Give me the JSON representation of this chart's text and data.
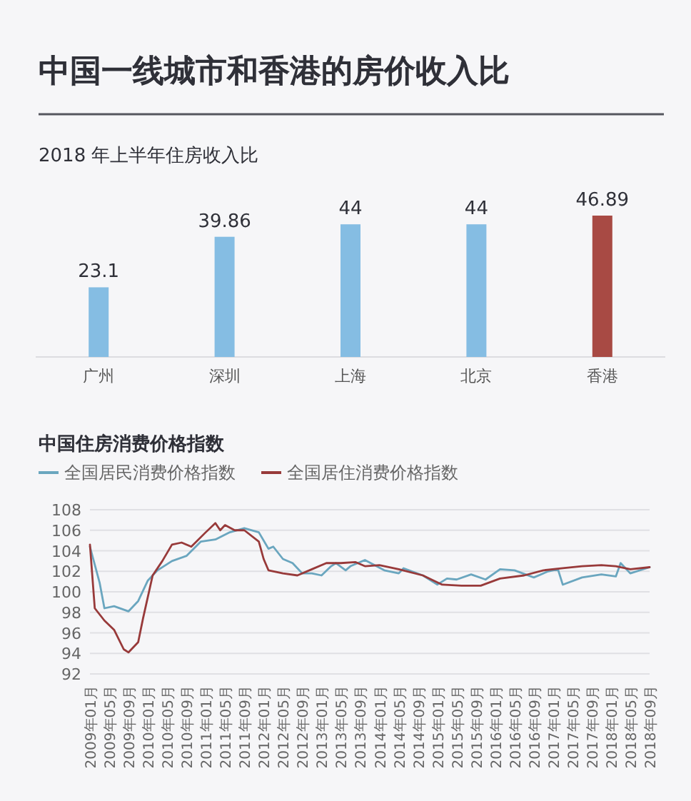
{
  "chart_data": [
    {
      "type": "bar",
      "title": "中国一线城市和香港的房价收入比",
      "subtitle": "2018 年上半年住房收入比",
      "categories": [
        "广州",
        "深圳",
        "上海",
        "北京",
        "香港"
      ],
      "values": [
        23.1,
        39.86,
        44,
        44,
        46.89
      ],
      "colors": [
        "#85bde3",
        "#85bde3",
        "#85bde3",
        "#85bde3",
        "#a84a44"
      ],
      "data_labels": true
    },
    {
      "type": "line",
      "title": "中国住房消费价格指数",
      "legend": "top left",
      "grid": "y",
      "ylim": [
        92,
        108
      ],
      "yticks": [
        92,
        94,
        96,
        98,
        100,
        102,
        104,
        106,
        108
      ],
      "xlim": [
        "2009-01",
        "2018-09"
      ],
      "xticks": [
        {
          "value": "2009-01",
          "label": "2009年01月"
        },
        {
          "value": "2009-05",
          "label": "2009年05月"
        },
        {
          "value": "2009-09",
          "label": "2009年09月"
        },
        {
          "value": "2010-01",
          "label": "2010年01月"
        },
        {
          "value": "2010-05",
          "label": "2010年05月"
        },
        {
          "value": "2010-09",
          "label": "2010年09月"
        },
        {
          "value": "2011-01",
          "label": "2011年01月"
        },
        {
          "value": "2011-05",
          "label": "2011年05月"
        },
        {
          "value": "2011-09",
          "label": "2011年09月"
        },
        {
          "value": "2012-01",
          "label": "2012年01月"
        },
        {
          "value": "2012-05",
          "label": "2012年05月"
        },
        {
          "value": "2012-09",
          "label": "2012年09月"
        },
        {
          "value": "2013-01",
          "label": "2013年01月"
        },
        {
          "value": "2013-05",
          "label": "2013年05月"
        },
        {
          "value": "2013-09",
          "label": "2013年09月"
        },
        {
          "value": "2014-01",
          "label": "2014年01月"
        },
        {
          "value": "2014-05",
          "label": "2014年05月"
        },
        {
          "value": "2014-09",
          "label": "2014年09月"
        },
        {
          "value": "2015-01",
          "label": "2015年01月"
        },
        {
          "value": "2015-05",
          "label": "2015年05月"
        },
        {
          "value": "2015-09",
          "label": "2015年09月"
        },
        {
          "value": "2016-01",
          "label": "2016年01月"
        },
        {
          "value": "2016-05",
          "label": "2016年05月"
        },
        {
          "value": "2016-09",
          "label": "2016年09月"
        },
        {
          "value": "2017-01",
          "label": "2017年01月"
        },
        {
          "value": "2017-05",
          "label": "2017年05月"
        },
        {
          "value": "2017-09",
          "label": "2017年09月"
        },
        {
          "value": "2018-01",
          "label": "2018年01月"
        },
        {
          "value": "2018-05",
          "label": "2018年05月"
        },
        {
          "value": "2018-09",
          "label": "2018年09月"
        }
      ],
      "series": [
        {
          "name": "全国居民消费价格指数",
          "color": "#6aa6bf",
          "x": [
            "2009-01",
            "2009-03",
            "2009-04",
            "2009-06",
            "2009-09",
            "2009-11",
            "2010-01",
            "2010-03",
            "2010-06",
            "2010-09",
            "2010-12",
            "2011-03",
            "2011-06",
            "2011-09",
            "2011-12",
            "2012-02",
            "2012-03",
            "2012-05",
            "2012-07",
            "2012-09",
            "2012-11",
            "2013-01",
            "2013-03",
            "2013-04",
            "2013-06",
            "2013-07",
            "2013-10",
            "2014-02",
            "2014-05",
            "2014-06",
            "2014-10",
            "2015-01",
            "2015-03",
            "2015-05",
            "2015-08",
            "2015-11",
            "2016-02",
            "2016-05",
            "2016-09",
            "2016-12",
            "2017-02",
            "2017-03",
            "2017-07",
            "2017-11",
            "2018-02",
            "2018-03",
            "2018-05",
            "2018-09"
          ],
          "values": [
            104.4,
            100.9,
            98.4,
            98.6,
            98.1,
            99.1,
            101.1,
            102.1,
            103.0,
            103.5,
            104.9,
            105.1,
            105.8,
            106.2,
            105.8,
            104.2,
            104.4,
            103.2,
            102.8,
            101.8,
            101.8,
            101.6,
            102.5,
            102.8,
            102.1,
            102.5,
            103.1,
            102.1,
            101.8,
            102.3,
            101.6,
            100.7,
            101.3,
            101.2,
            101.7,
            101.2,
            102.2,
            102.1,
            101.4,
            102.0,
            102.2,
            100.7,
            101.4,
            101.7,
            101.5,
            102.8,
            101.8,
            102.4
          ]
        },
        {
          "name": "全国居住消费价格指数",
          "color": "#983a3a",
          "x": [
            "2009-01",
            "2009-02",
            "2009-04",
            "2009-06",
            "2009-08",
            "2009-09",
            "2009-11",
            "2009-12",
            "2010-02",
            "2010-04",
            "2010-06",
            "2010-08",
            "2010-10",
            "2011-01",
            "2011-03",
            "2011-04",
            "2011-05",
            "2011-07",
            "2011-09",
            "2011-12",
            "2012-01",
            "2012-02",
            "2012-05",
            "2012-08",
            "2012-11",
            "2013-02",
            "2013-05",
            "2013-08",
            "2013-10",
            "2014-01",
            "2014-05",
            "2014-10",
            "2015-02",
            "2015-06",
            "2015-10",
            "2016-02",
            "2016-07",
            "2016-11",
            "2017-03",
            "2017-07",
            "2017-11",
            "2018-02",
            "2018-05",
            "2018-09"
          ],
          "values": [
            104.6,
            98.4,
            97.2,
            96.3,
            94.4,
            94.1,
            95.1,
            97.4,
            101.6,
            103.0,
            104.6,
            104.8,
            104.4,
            105.8,
            106.7,
            106.0,
            106.5,
            106.0,
            106.0,
            104.9,
            103.2,
            102.1,
            101.8,
            101.6,
            102.2,
            102.8,
            102.8,
            102.9,
            102.5,
            102.6,
            102.2,
            101.6,
            100.7,
            100.6,
            100.6,
            101.3,
            101.6,
            102.1,
            102.3,
            102.5,
            102.6,
            102.5,
            102.2,
            102.4
          ]
        }
      ]
    }
  ]
}
